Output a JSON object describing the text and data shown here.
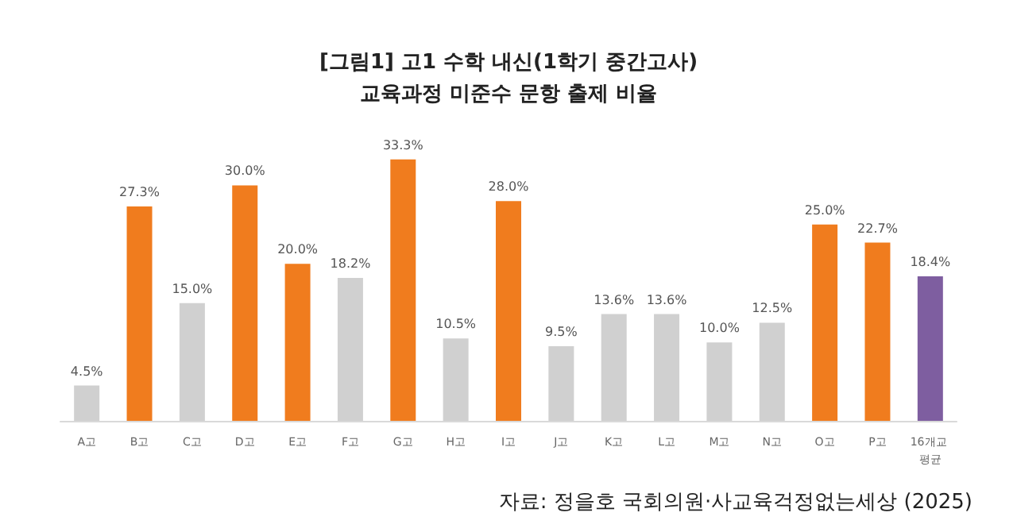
{
  "chart_data": {
    "type": "bar",
    "title": "[그림1] 고1 수학 내신(1학기 중간고사)",
    "subtitle": "교육과정 미준수 문항 출제 비율",
    "categories": [
      "A고",
      "B고",
      "C고",
      "D고",
      "E고",
      "F고",
      "G고",
      "H고",
      "I고",
      "J고",
      "K고",
      "L고",
      "M고",
      "N고",
      "O고",
      "P고",
      "16개교 평균"
    ],
    "values": [
      4.5,
      27.3,
      15.0,
      30.0,
      20.0,
      18.2,
      33.3,
      10.5,
      28.0,
      9.5,
      13.6,
      13.6,
      10.0,
      12.5,
      25.0,
      22.7,
      18.4
    ],
    "value_labels": [
      "4.5%",
      "27.3%",
      "15.0%",
      "30.0%",
      "20.0%",
      "18.2%",
      "33.3%",
      "10.5%",
      "28.0%",
      "9.5%",
      "13.6%",
      "13.6%",
      "10.0%",
      "12.5%",
      "25.0%",
      "22.7%",
      "18.4%"
    ],
    "colors": [
      "#d0d0d0",
      "#f07c1e",
      "#d0d0d0",
      "#f07c1e",
      "#f07c1e",
      "#d0d0d0",
      "#f07c1e",
      "#d0d0d0",
      "#f07c1e",
      "#d0d0d0",
      "#d0d0d0",
      "#d0d0d0",
      "#d0d0d0",
      "#d0d0d0",
      "#f07c1e",
      "#f07c1e",
      "#7e5ea0"
    ],
    "annotations": [
      "자료: 정을호 국회의원·사교육걱정없는세상 (2025)"
    ]
  }
}
